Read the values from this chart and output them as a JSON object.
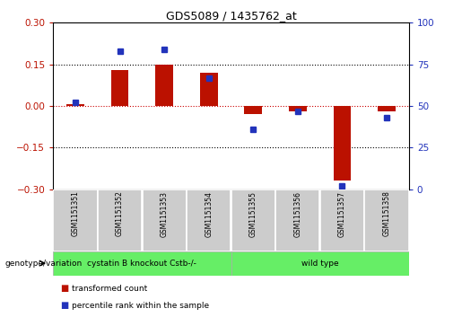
{
  "title": "GDS5089 / 1435762_at",
  "samples": [
    "GSM1151351",
    "GSM1151352",
    "GSM1151353",
    "GSM1151354",
    "GSM1151355",
    "GSM1151356",
    "GSM1151357",
    "GSM1151358"
  ],
  "transformed_count": [
    0.005,
    0.13,
    0.148,
    0.12,
    -0.03,
    -0.02,
    -0.27,
    -0.02
  ],
  "percentile_rank": [
    52,
    83,
    84,
    67,
    36,
    47,
    2,
    43
  ],
  "ylim_left": [
    -0.3,
    0.3
  ],
  "ylim_right": [
    0,
    100
  ],
  "yticks_left": [
    -0.3,
    -0.15,
    0,
    0.15,
    0.3
  ],
  "yticks_right": [
    0,
    25,
    50,
    75,
    100
  ],
  "group_boundary": 4,
  "group1_label": "cystatin B knockout Cstb-/-",
  "group2_label": "wild type",
  "group_color": "#66ee66",
  "bar_color": "#bb1100",
  "dot_color": "#2233bb",
  "zero_line_color": "#cc0000",
  "grid_levels": [
    -0.15,
    0.15
  ],
  "genotype_label": "genotype/variation",
  "legend1_label": "transformed count",
  "legend1_color": "#bb1100",
  "legend2_label": "percentile rank within the sample",
  "legend2_color": "#2233bb"
}
